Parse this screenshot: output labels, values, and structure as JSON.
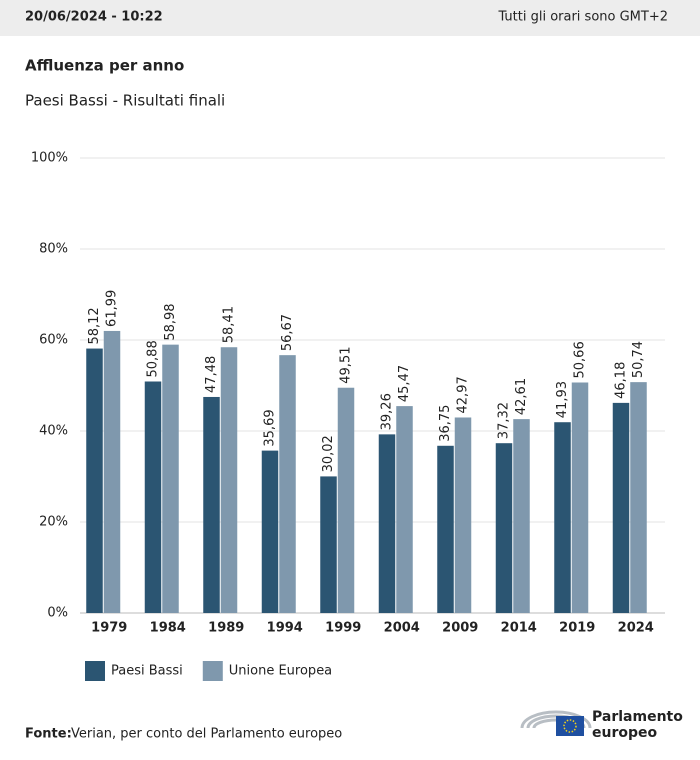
{
  "header": {
    "date": "20/06/2024 - 10:22",
    "timezone": "Tutti gli orari sono GMT+2"
  },
  "chart_data": {
    "type": "bar",
    "title": "Affluenza per anno",
    "subtitle": "Paesi Bassi - Risultati finali",
    "categories": [
      "1979",
      "1984",
      "1989",
      "1994",
      "1999",
      "2004",
      "2009",
      "2014",
      "2019",
      "2024"
    ],
    "series": [
      {
        "name": "Paesi Bassi",
        "color": "#2b5572",
        "values": [
          58.12,
          50.88,
          47.48,
          35.69,
          30.02,
          39.26,
          36.75,
          37.32,
          41.93,
          46.18
        ],
        "value_labels": [
          "58,12",
          "50,88",
          "47,48",
          "35,69",
          "30,02",
          "39,26",
          "36,75",
          "37,32",
          "41,93",
          "46,18"
        ]
      },
      {
        "name": "Unione Europea",
        "color": "#7f98ad",
        "values": [
          61.99,
          58.98,
          58.41,
          56.67,
          49.51,
          45.47,
          42.97,
          42.61,
          50.66,
          50.74
        ],
        "value_labels": [
          "61,99",
          "58,98",
          "58,41",
          "56,67",
          "49,51",
          "45,47",
          "42,97",
          "42,61",
          "50,66",
          "50,74"
        ]
      }
    ],
    "ylim": [
      0,
      100
    ],
    "yticks": [
      {
        "value": 0,
        "label": "0%"
      },
      {
        "value": 20,
        "label": "20%"
      },
      {
        "value": 40,
        "label": "40%"
      },
      {
        "value": 60,
        "label": "60%"
      },
      {
        "value": 80,
        "label": "80%"
      },
      {
        "value": 100,
        "label": "100%"
      }
    ],
    "grid": true
  },
  "footer": {
    "source_label": "Fonte:",
    "source": "Verian, per conto del Parlamento europeo",
    "logo": [
      "Parlamento",
      "europeo"
    ]
  }
}
